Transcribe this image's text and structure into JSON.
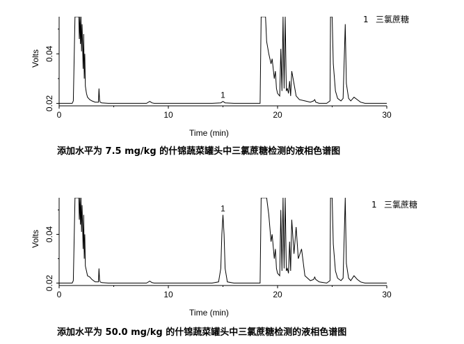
{
  "chart_data": [
    {
      "type": "line",
      "caption": "添加水平为 7.5 mg/kg 的什锦蔬菜罐头中三氯蔗糖检测的液相色谱图",
      "xlabel": "Time (min)",
      "ylabel": "Volts",
      "xlim": [
        0,
        30
      ],
      "ylim": [
        0.019,
        0.055
      ],
      "x_ticks": [
        0,
        10,
        20,
        30
      ],
      "y_ticks": [
        0.02,
        0.04
      ],
      "legend": {
        "number": "1",
        "label": "三氯蔗糖",
        "position": "top-right"
      },
      "peak_labels": [
        {
          "text": "1",
          "x": 15.0
        }
      ],
      "series": [
        {
          "x": [
            0,
            0.5,
            1.0,
            1.2,
            1.3,
            1.45,
            1.6,
            1.8,
            1.85,
            1.9,
            1.95,
            2.0,
            2.05,
            2.1,
            2.2,
            2.25,
            2.3,
            2.35,
            2.4,
            2.5,
            2.6,
            2.8,
            3.0,
            3.3,
            3.6,
            3.65,
            3.7,
            3.75,
            3.9,
            4.5,
            6.0,
            8.0,
            8.3,
            8.5,
            8.7,
            10.0,
            12.0,
            14.0,
            14.8,
            15.0,
            15.2,
            16.0,
            18.0,
            18.4,
            18.5,
            18.6,
            18.8,
            18.9,
            19.0,
            19.2,
            19.4,
            19.5,
            19.7,
            19.8,
            19.9,
            20.0,
            20.2,
            20.3,
            20.4,
            20.5,
            20.6,
            20.7,
            20.8,
            20.9,
            21.0,
            21.1,
            21.2,
            21.3,
            21.5,
            21.7,
            22.0,
            22.5,
            23.0,
            23.3,
            23.4,
            23.5,
            23.8,
            24.5,
            24.8,
            24.85,
            25.0,
            25.1,
            25.3,
            25.5,
            25.8,
            26.0,
            26.2,
            26.3,
            26.5,
            26.7,
            27.0,
            27.3,
            27.6,
            28.0,
            29.0,
            30.0
          ],
          "y": [
            0.02,
            0.02,
            0.02,
            0.02,
            0.021,
            0.055,
            0.055,
            0.055,
            0.046,
            0.055,
            0.044,
            0.055,
            0.041,
            0.052,
            0.034,
            0.048,
            0.03,
            0.04,
            0.027,
            0.024,
            0.0225,
            0.0215,
            0.021,
            0.0205,
            0.0205,
            0.026,
            0.0215,
            0.0205,
            0.0202,
            0.02,
            0.02,
            0.02,
            0.0208,
            0.0202,
            0.02,
            0.02,
            0.02,
            0.02,
            0.0202,
            0.0208,
            0.0202,
            0.02,
            0.02,
            0.02,
            0.055,
            0.055,
            0.055,
            0.055,
            0.045,
            0.04,
            0.036,
            0.038,
            0.03,
            0.033,
            0.026,
            0.024,
            0.023,
            0.042,
            0.025,
            0.055,
            0.026,
            0.055,
            0.025,
            0.026,
            0.024,
            0.029,
            0.023,
            0.033,
            0.028,
            0.023,
            0.0215,
            0.021,
            0.0205,
            0.021,
            0.0215,
            0.0205,
            0.02,
            0.02,
            0.021,
            0.055,
            0.055,
            0.036,
            0.025,
            0.022,
            0.021,
            0.022,
            0.052,
            0.028,
            0.022,
            0.021,
            0.0225,
            0.0215,
            0.0205,
            0.02,
            0.02,
            0.02
          ]
        }
      ]
    },
    {
      "type": "line",
      "caption": "添加水平为 50.0 mg/kg 的什锦蔬菜罐头中三氯蔗糖检测的液相色谱图",
      "xlabel": "Time (min)",
      "ylabel": "Volts",
      "xlim": [
        0,
        30
      ],
      "ylim": [
        0.019,
        0.055
      ],
      "x_ticks": [
        0,
        10,
        20,
        30
      ],
      "y_ticks": [
        0.02,
        0.04
      ],
      "legend": {
        "number": "1",
        "label": "三氯蔗糖",
        "position": "top-right"
      },
      "peak_labels": [
        {
          "text": "1",
          "x": 15.0
        }
      ],
      "series": [
        {
          "x": [
            0,
            0.5,
            1.0,
            1.2,
            1.3,
            1.45,
            1.6,
            1.8,
            1.85,
            1.9,
            1.95,
            2.0,
            2.05,
            2.1,
            2.2,
            2.25,
            2.3,
            2.35,
            2.4,
            2.5,
            2.6,
            2.8,
            3.0,
            3.3,
            3.6,
            3.65,
            3.7,
            3.75,
            3.9,
            4.5,
            6.0,
            8.0,
            8.3,
            8.5,
            8.7,
            10.0,
            12.0,
            14.0,
            14.6,
            14.8,
            14.9,
            15.0,
            15.1,
            15.2,
            15.4,
            16.0,
            18.0,
            18.4,
            18.5,
            18.6,
            18.8,
            19.0,
            19.2,
            19.4,
            19.5,
            19.7,
            19.8,
            19.9,
            20.0,
            20.2,
            20.3,
            20.4,
            20.5,
            20.6,
            20.7,
            20.8,
            20.9,
            21.0,
            21.1,
            21.2,
            21.3,
            21.5,
            21.7,
            21.9,
            22.2,
            22.5,
            23.0,
            23.3,
            23.4,
            23.5,
            23.8,
            24.5,
            24.8,
            24.85,
            25.0,
            25.1,
            25.3,
            25.5,
            25.8,
            26.0,
            26.2,
            26.3,
            26.5,
            26.7,
            27.0,
            27.3,
            27.6,
            28.0,
            29.0,
            30.0
          ],
          "y": [
            0.02,
            0.02,
            0.02,
            0.02,
            0.021,
            0.055,
            0.055,
            0.055,
            0.046,
            0.055,
            0.044,
            0.055,
            0.041,
            0.052,
            0.034,
            0.048,
            0.03,
            0.04,
            0.027,
            0.025,
            0.023,
            0.0225,
            0.0215,
            0.0205,
            0.0205,
            0.026,
            0.0215,
            0.0205,
            0.0202,
            0.02,
            0.02,
            0.02,
            0.0208,
            0.0202,
            0.02,
            0.02,
            0.02,
            0.02,
            0.0205,
            0.026,
            0.04,
            0.048,
            0.04,
            0.026,
            0.0205,
            0.02,
            0.02,
            0.02,
            0.055,
            0.055,
            0.055,
            0.055,
            0.048,
            0.037,
            0.04,
            0.03,
            0.034,
            0.026,
            0.024,
            0.023,
            0.05,
            0.025,
            0.055,
            0.026,
            0.055,
            0.025,
            0.026,
            0.024,
            0.037,
            0.025,
            0.046,
            0.032,
            0.043,
            0.03,
            0.034,
            0.023,
            0.021,
            0.0215,
            0.0225,
            0.0215,
            0.0205,
            0.02,
            0.021,
            0.055,
            0.055,
            0.036,
            0.025,
            0.022,
            0.021,
            0.022,
            0.055,
            0.028,
            0.022,
            0.021,
            0.023,
            0.0215,
            0.0205,
            0.02,
            0.02,
            0.02
          ]
        }
      ]
    }
  ]
}
